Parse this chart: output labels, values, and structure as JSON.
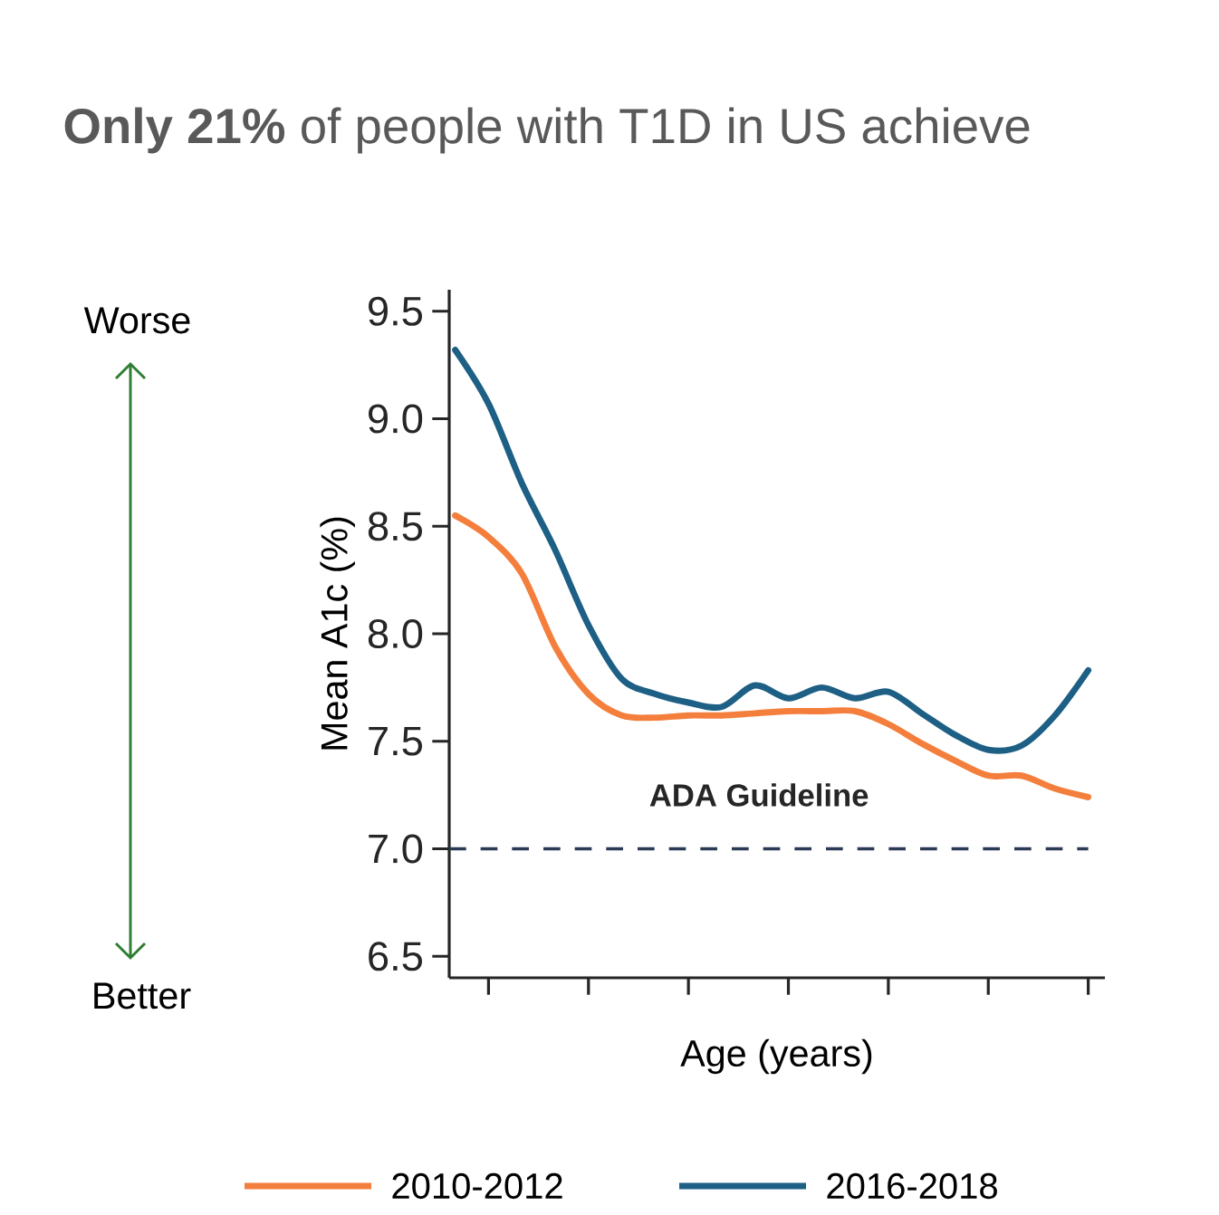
{
  "chart_data": {
    "type": "line",
    "title": "**Only 21%** of people with T1D in US achieve",
    "xlabel": "Age (years)",
    "ylabel": "Mean A1c (%)",
    "categories": [
      null,
      null,
      null,
      null,
      null,
      null,
      null,
      null,
      null,
      null,
      null,
      null,
      null,
      null,
      null,
      null,
      null,
      null,
      null,
      null
    ],
    "series": [
      {
        "name": "2010-2012",
        "color": "#f47f3d",
        "values": [
          8.55,
          8.45,
          8.28,
          7.94,
          7.72,
          7.62,
          7.61,
          7.62,
          7.62,
          7.63,
          7.64,
          7.64,
          7.64,
          7.58,
          7.49,
          7.41,
          7.34,
          7.34,
          7.28,
          7.24
        ]
      },
      {
        "name": "2016-2018",
        "color": "#1d5f85",
        "values": [
          9.32,
          9.07,
          8.7,
          8.39,
          8.04,
          7.79,
          7.72,
          7.68,
          7.66,
          7.76,
          7.7,
          7.75,
          7.7,
          7.73,
          7.63,
          7.53,
          7.46,
          7.48,
          7.62,
          7.83
        ]
      }
    ],
    "ylim": [
      6.4,
      9.6
    ],
    "yticks": [
      {
        "value": 6.5,
        "label": "6.5"
      },
      {
        "value": 7.0,
        "label": "7.0"
      },
      {
        "value": 7.5,
        "label": "7.5"
      },
      {
        "value": 8.0,
        "label": "8.0"
      },
      {
        "value": 8.5,
        "label": "8.5"
      },
      {
        "value": 9.0,
        "label": "9.0"
      },
      {
        "value": 9.5,
        "label": "9.5"
      }
    ],
    "ref_lines": [
      {
        "axis": "y",
        "value": 7.0,
        "label": "ADA Guideline",
        "color": "#2b3a55",
        "line_style": "dashed"
      }
    ],
    "annotations": [
      "Worse",
      "Better"
    ],
    "legend": "bottom",
    "marker": "none",
    "line_style": "solid"
  }
}
